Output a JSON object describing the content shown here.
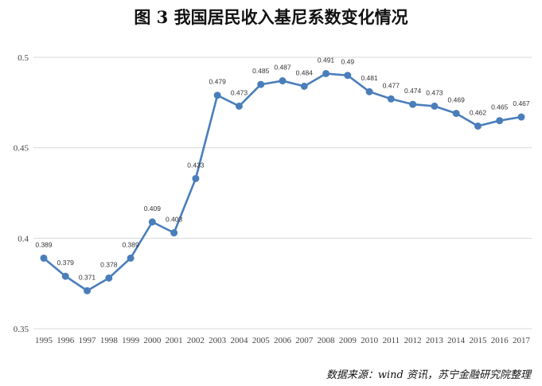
{
  "title": "图 3  我国居民收入基尼系数变化情况",
  "source": "数据来源：wind 资讯，苏宁金融研究院整理",
  "chart_data": {
    "type": "line",
    "title": "图 3  我国居民收入基尼系数变化情况",
    "xlabel": "",
    "ylabel": "",
    "categories": [
      "1995",
      "1996",
      "1997",
      "1998",
      "1999",
      "2000",
      "2001",
      "2002",
      "2003",
      "2004",
      "2005",
      "2006",
      "2007",
      "2008",
      "2009",
      "2010",
      "2011",
      "2012",
      "2013",
      "2014",
      "2015",
      "2016",
      "2017"
    ],
    "series": [
      {
        "values": [
          0.389,
          0.379,
          0.371,
          0.378,
          0.389,
          0.409,
          0.403,
          0.433,
          0.479,
          0.473,
          0.485,
          0.487,
          0.484,
          0.491,
          0.49,
          0.481,
          0.477,
          0.474,
          0.473,
          0.469,
          0.462,
          0.465,
          0.467
        ],
        "color": "#4a7ebb"
      }
    ],
    "ylim": [
      0.35,
      0.5
    ],
    "yticks": [
      0.35,
      0.4,
      0.45,
      0.5
    ],
    "ytick_labels": [
      "0.35",
      "0.4",
      "0.45",
      "0.5"
    ],
    "data_labels": [
      "0.389",
      "0.379",
      "0.371",
      "0.378",
      "0.389",
      "0.409",
      "0.403",
      "0.433",
      "0.479",
      "0.473",
      "0.485",
      "0.487",
      "0.484",
      "0.491",
      "0.49",
      "0.481",
      "0.477",
      "0.474",
      "0.473",
      "0.469",
      "0.462",
      "0.465",
      "0.467"
    ],
    "grid": true,
    "legend": "none"
  }
}
